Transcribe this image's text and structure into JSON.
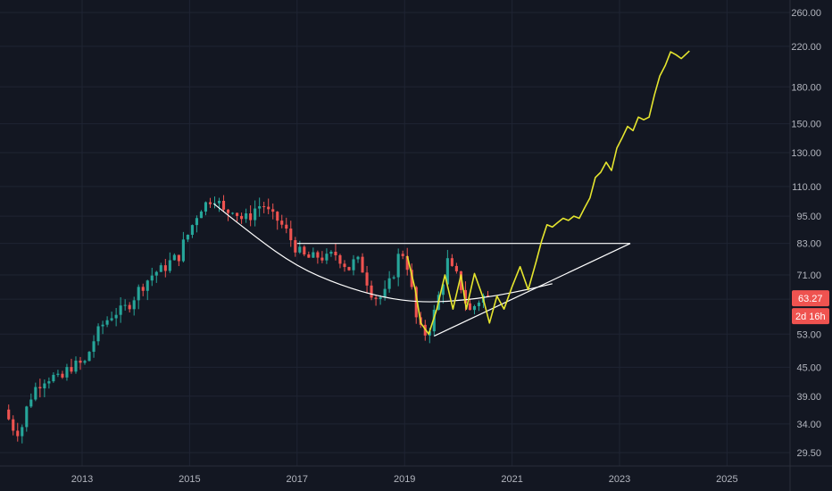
{
  "chart_data": {
    "type": "candlestick",
    "title": "",
    "xlabel": "",
    "ylabel": "",
    "y_scale": "log",
    "ylim": [
      27.5,
      280
    ],
    "xlim": [
      2011.5,
      2026.5
    ],
    "grid": true,
    "x_ticks": [
      {
        "value": 2013,
        "label": "2013"
      },
      {
        "value": 2015,
        "label": "2015"
      },
      {
        "value": 2017,
        "label": "2017"
      },
      {
        "value": 2019,
        "label": "2019"
      },
      {
        "value": 2021,
        "label": "2021"
      },
      {
        "value": 2023,
        "label": "2023"
      },
      {
        "value": 2025,
        "label": "2025"
      }
    ],
    "y_ticks": [
      {
        "value": 260,
        "label": "260.00"
      },
      {
        "value": 220,
        "label": "220.00"
      },
      {
        "value": 180,
        "label": "180.00"
      },
      {
        "value": 150,
        "label": "150.00"
      },
      {
        "value": 130,
        "label": "130.00"
      },
      {
        "value": 110,
        "label": "110.00"
      },
      {
        "value": 95,
        "label": "95.00"
      },
      {
        "value": 83,
        "label": "83.00"
      },
      {
        "value": 71,
        "label": "71.00"
      },
      {
        "value": 63,
        "label": "63.00"
      },
      {
        "value": 53,
        "label": "53.00"
      },
      {
        "value": 45,
        "label": "45.00"
      },
      {
        "value": 39,
        "label": "39.00"
      },
      {
        "value": 34,
        "label": "34.00"
      },
      {
        "value": 29.5,
        "label": "29.50"
      }
    ],
    "price_badge": {
      "value": 63.27,
      "label": "63.27",
      "countdown": "2d 16h"
    },
    "candle_path": [
      [
        2011.55,
        36.5
      ],
      [
        2011.7,
        33.5
      ],
      [
        2011.85,
        32.5
      ],
      [
        2012.0,
        38.0
      ],
      [
        2012.15,
        41.0
      ],
      [
        2012.3,
        42.5
      ],
      [
        2012.45,
        43.0
      ],
      [
        2012.6,
        42.0
      ],
      [
        2012.75,
        45.0
      ],
      [
        2012.9,
        45.5
      ],
      [
        2013.05,
        46.0
      ],
      [
        2013.2,
        51.0
      ],
      [
        2013.35,
        55.0
      ],
      [
        2013.5,
        57.5
      ],
      [
        2013.6,
        59.0
      ],
      [
        2013.75,
        59.5
      ],
      [
        2013.9,
        62.0
      ],
      [
        2014.05,
        66.0
      ],
      [
        2014.2,
        69.0
      ],
      [
        2014.35,
        72.0
      ],
      [
        2014.5,
        73.0
      ],
      [
        2014.65,
        76.0
      ],
      [
        2014.8,
        78.0
      ],
      [
        2014.9,
        84.0
      ],
      [
        2015.0,
        88.0
      ],
      [
        2015.1,
        94.0
      ],
      [
        2015.2,
        99.0
      ],
      [
        2015.3,
        101.0
      ],
      [
        2015.45,
        105.0
      ],
      [
        2015.55,
        101.0
      ],
      [
        2015.65,
        96.0
      ],
      [
        2015.8,
        99.0
      ],
      [
        2015.95,
        94.0
      ],
      [
        2016.1,
        94.0
      ],
      [
        2016.25,
        100.0
      ],
      [
        2016.4,
        100.0
      ],
      [
        2016.5,
        95.0
      ],
      [
        2016.65,
        93.0
      ],
      [
        2016.8,
        88.0
      ],
      [
        2016.95,
        82.0
      ],
      [
        2017.1,
        78.0
      ],
      [
        2017.25,
        77.0
      ],
      [
        2017.4,
        78.0
      ],
      [
        2017.55,
        77.0
      ],
      [
        2017.7,
        79.0
      ],
      [
        2017.85,
        76.0
      ],
      [
        2017.95,
        73.0
      ],
      [
        2018.1,
        77.0
      ],
      [
        2018.25,
        72.0
      ],
      [
        2018.35,
        66.0
      ],
      [
        2018.5,
        63.0
      ],
      [
        2018.65,
        65.0
      ],
      [
        2018.8,
        72.0
      ],
      [
        2018.9,
        79.0
      ],
      [
        2019.0,
        79.0
      ],
      [
        2019.1,
        70.0
      ],
      [
        2019.2,
        58.0
      ],
      [
        2019.3,
        54.0
      ],
      [
        2019.4,
        53.0
      ],
      [
        2019.5,
        56.0
      ],
      [
        2019.6,
        62.0
      ],
      [
        2019.7,
        68.0
      ],
      [
        2019.8,
        76.0
      ],
      [
        2019.9,
        72.0
      ],
      [
        2020.0,
        70.0
      ],
      [
        2020.1,
        64.0
      ],
      [
        2020.2,
        59.0
      ],
      [
        2020.3,
        61.0
      ],
      [
        2020.45,
        64.0
      ],
      [
        2020.6,
        63.27
      ]
    ],
    "series": [
      {
        "type": "line",
        "color": "#e5e52e",
        "points": [
          [
            2019.05,
            78.0
          ],
          [
            2019.2,
            66.0
          ],
          [
            2019.3,
            56.0
          ],
          [
            2019.45,
            53.0
          ],
          [
            2019.6,
            60.0
          ],
          [
            2019.75,
            71.0
          ],
          [
            2019.9,
            60.0
          ],
          [
            2020.05,
            71.0
          ],
          [
            2020.15,
            60.0
          ],
          [
            2020.3,
            71.5
          ],
          [
            2020.45,
            64.0
          ],
          [
            2020.58,
            56.0
          ],
          [
            2020.72,
            64.0
          ],
          [
            2020.85,
            60.0
          ],
          [
            2021.0,
            67.0
          ],
          [
            2021.15,
            74.0
          ],
          [
            2021.3,
            66.0
          ],
          [
            2021.45,
            76.0
          ],
          [
            2021.55,
            84.0
          ],
          [
            2021.65,
            91.0
          ],
          [
            2021.75,
            90.0
          ],
          [
            2021.85,
            92.0
          ],
          [
            2021.95,
            94.0
          ],
          [
            2022.05,
            93.0
          ],
          [
            2022.15,
            95.0
          ],
          [
            2022.25,
            94.0
          ],
          [
            2022.35,
            99.0
          ],
          [
            2022.45,
            104.0
          ],
          [
            2022.55,
            115.0
          ],
          [
            2022.65,
            118.0
          ],
          [
            2022.75,
            124.0
          ],
          [
            2022.85,
            119.0
          ],
          [
            2022.95,
            133.0
          ],
          [
            2023.05,
            140.0
          ],
          [
            2023.15,
            148.0
          ],
          [
            2023.25,
            145.0
          ],
          [
            2023.35,
            155.0
          ],
          [
            2023.45,
            153.0
          ],
          [
            2023.55,
            155.0
          ],
          [
            2023.65,
            173.0
          ],
          [
            2023.75,
            190.0
          ],
          [
            2023.85,
            200.0
          ],
          [
            2023.95,
            214.0
          ],
          [
            2024.05,
            211.0
          ],
          [
            2024.15,
            207.0
          ],
          [
            2024.3,
            215.0
          ]
        ]
      }
    ],
    "annotations": [
      {
        "type": "hline",
        "x1": 2017.0,
        "x2": 2023.2,
        "y": 83.0,
        "color": "#ffffff"
      },
      {
        "type": "trendline",
        "x1": 2019.55,
        "y1": 52.5,
        "x2": 2023.2,
        "y2": 83.0,
        "color": "#ffffff"
      },
      {
        "type": "arc",
        "color": "#ffffff",
        "points": [
          [
            2015.45,
            101.0
          ],
          [
            2016.2,
            86.0
          ],
          [
            2017.0,
            74.0
          ],
          [
            2017.8,
            67.5
          ],
          [
            2018.6,
            63.5
          ],
          [
            2019.3,
            62.0
          ],
          [
            2020.0,
            62.5
          ],
          [
            2020.7,
            64.0
          ],
          [
            2021.4,
            66.5
          ],
          [
            2021.75,
            68.0
          ]
        ]
      }
    ],
    "colors": {
      "background": "#131722",
      "up": "#26a69a",
      "down": "#ef5350",
      "grid": "#1f2433",
      "axis_text": "#b2b5be",
      "badge": "#ef5350"
    }
  }
}
